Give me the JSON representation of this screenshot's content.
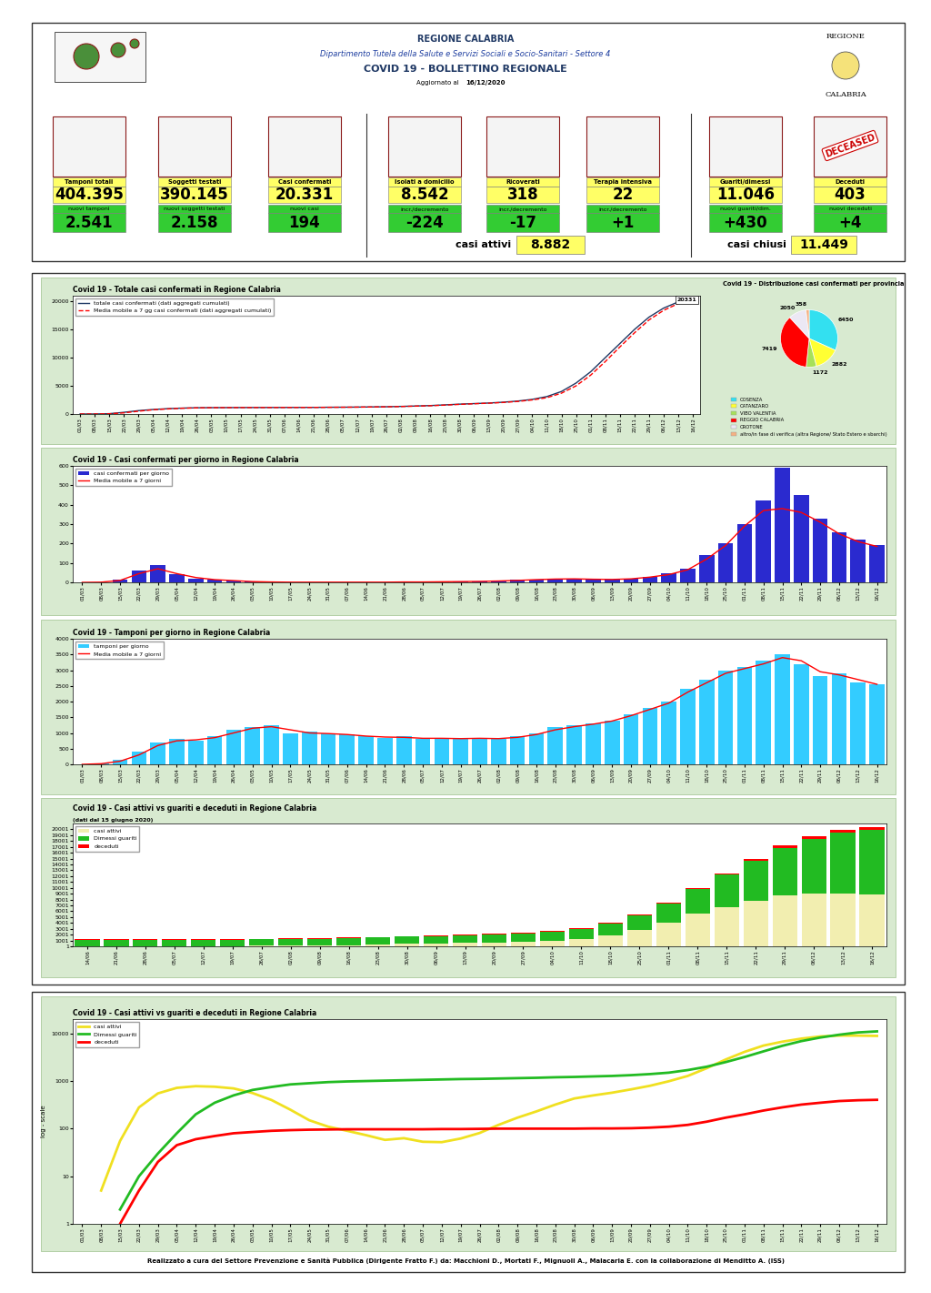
{
  "header": {
    "title": "REGIONE CALABRIA",
    "department": "Dipartimento Tutela della Salute e Servizi Sociali e Socio-Sanitari - Settore 4",
    "bulletin": "COVID 19 - BOLLETTINO REGIONALE",
    "updated_label": "Aggiornato al",
    "updated_date": "16/12/2020",
    "logo": [
      "REGIONE",
      "CALABRIA"
    ]
  },
  "indicators": [
    {
      "label": "Tamponi totali",
      "value": "404.395",
      "sub_label": "nuovi tamponi",
      "sub_value": "2.541"
    },
    {
      "label": "Soggetti testati",
      "value": "390.145",
      "sub_label": "nuovi soggetti testati",
      "sub_value": "2.158"
    },
    {
      "label": "Casi confermati",
      "value": "20.331",
      "sub_label": "nuovi casi",
      "sub_value": "194"
    },
    {
      "label": "Isolati a domicilio",
      "value": "8.542",
      "sub_label": "incr./decremento",
      "sub_value": "-224"
    },
    {
      "label": "Ricoverati",
      "value": "318",
      "sub_label": "incr./decremento",
      "sub_value": "-17"
    },
    {
      "label": "Terapia intensiva",
      "value": "22",
      "sub_label": "incr./decremento",
      "sub_value": "+1"
    },
    {
      "label": "Guariti/dimessi",
      "value": "11.046",
      "sub_label": "nuovi guariti/dim.",
      "sub_value": "+430"
    },
    {
      "label": "Deceduti",
      "value": "403",
      "sub_label": "nuovi deceduti",
      "sub_value": "+4"
    }
  ],
  "stamp": "DECEASED",
  "summary": [
    {
      "label": "casi attivi",
      "value": "8.882"
    },
    {
      "label": "casi chiusi",
      "value": "11.449"
    }
  ],
  "chart_data": [
    {
      "type": "line",
      "title": "Covid 19 - Totale casi confermati in Regione Calabria",
      "annotation": "20331",
      "categories": [
        "01/03",
        "08/03",
        "15/03",
        "22/03",
        "29/03",
        "05/04",
        "12/04",
        "19/04",
        "26/04",
        "03/05",
        "10/05",
        "17/05",
        "24/05",
        "31/05",
        "07/06",
        "14/06",
        "21/06",
        "28/06",
        "05/07",
        "12/07",
        "19/07",
        "26/07",
        "02/08",
        "09/08",
        "16/08",
        "23/08",
        "30/08",
        "06/09",
        "13/09",
        "20/09",
        "27/09",
        "04/10",
        "11/10",
        "18/10",
        "25/10",
        "01/11",
        "08/11",
        "15/11",
        "22/11",
        "29/11",
        "06/12",
        "13/12",
        "16/12"
      ],
      "series": [
        {
          "name": "totale casi confermati (dati aggregati cumulati)",
          "color": "#1f3864",
          "line_style": "solid",
          "values": [
            0,
            5,
            60,
            300,
            600,
            800,
            950,
            1050,
            1110,
            1130,
            1140,
            1150,
            1155,
            1160,
            1165,
            1170,
            1175,
            1200,
            1210,
            1230,
            1260,
            1290,
            1350,
            1420,
            1500,
            1620,
            1750,
            1850,
            1950,
            2100,
            2300,
            2600,
            3100,
            4000,
            5500,
            7500,
            10000,
            12500,
            15000,
            17200,
            18800,
            19900,
            20331
          ]
        },
        {
          "name": "Media mobile a 7 gg casi confermati (dati aggregati cumulati)",
          "color": "#ff0000",
          "line_style": "dashed",
          "values": [
            0,
            2,
            40,
            200,
            500,
            750,
            900,
            1020,
            1090,
            1125,
            1138,
            1148,
            1153,
            1158,
            1163,
            1168,
            1173,
            1190,
            1205,
            1222,
            1250,
            1280,
            1330,
            1400,
            1470,
            1580,
            1710,
            1820,
            1920,
            2050,
            2230,
            2500,
            2900,
            3700,
            5000,
            6900,
            9300,
            11900,
            14400,
            16700,
            18400,
            19600,
            20100
          ]
        }
      ],
      "ylim": [
        0,
        21000
      ],
      "yticks": [
        0,
        5000,
        10000,
        15000,
        20000
      ],
      "legend": "upper left"
    },
    {
      "type": "pie",
      "title": "Covid 19 - Distribuzione casi confermati per provincia",
      "categories": [
        "COSENZA",
        "CATANZARO",
        "VIBO VALENTIA",
        "REGGIO CALABRIA",
        "CROTONE",
        "altro/in fase di verifica (altra Regione/ Stato Estero e sbarchi)"
      ],
      "values": [
        6450,
        2882,
        1172,
        7419,
        2050,
        358
      ],
      "colors": [
        "#33e0f0",
        "#ffff33",
        "#a6e05a",
        "#ff0000",
        "#ece8f4",
        "#f4b183"
      ],
      "data_labels": true,
      "legend": "lower center"
    },
    {
      "type": "bar",
      "title": "Covid 19 - Casi confermati per giorno in Regione Calabria",
      "categories": [
        "01/03",
        "08/03",
        "15/03",
        "22/03",
        "29/03",
        "05/04",
        "12/04",
        "19/04",
        "26/04",
        "03/05",
        "10/05",
        "17/05",
        "24/05",
        "31/05",
        "07/06",
        "14/06",
        "21/06",
        "28/06",
        "05/07",
        "12/07",
        "19/07",
        "26/07",
        "02/08",
        "09/08",
        "16/08",
        "23/08",
        "30/08",
        "06/09",
        "13/09",
        "20/09",
        "27/09",
        "04/10",
        "11/10",
        "18/10",
        "25/10",
        "01/11",
        "08/11",
        "15/11",
        "22/11",
        "29/11",
        "06/12",
        "13/12",
        "16/12"
      ],
      "series": [
        {
          "name": "casi confermati per giorno",
          "type": "bar",
          "color": "#2a2acf",
          "values": [
            0,
            2,
            15,
            60,
            90,
            40,
            20,
            12,
            8,
            3,
            2,
            1,
            1,
            1,
            1,
            1,
            1,
            3,
            2,
            3,
            5,
            5,
            8,
            12,
            15,
            18,
            20,
            15,
            15,
            20,
            30,
            45,
            70,
            140,
            200,
            300,
            420,
            590,
            450,
            330,
            260,
            220,
            194
          ]
        },
        {
          "name": "Media mobile a 7 giorni",
          "type": "line",
          "color": "#ff0000",
          "values": [
            0,
            1,
            10,
            45,
            70,
            45,
            25,
            14,
            9,
            4,
            2,
            1,
            1,
            1,
            1,
            1,
            1,
            2,
            2,
            3,
            4,
            5,
            7,
            10,
            14,
            17,
            18,
            16,
            15,
            18,
            27,
            40,
            65,
            120,
            190,
            290,
            370,
            380,
            360,
            310,
            250,
            210,
            185
          ]
        }
      ],
      "ylim": [
        0,
        600
      ],
      "yticks": [
        0,
        100,
        200,
        300,
        400,
        500,
        600
      ],
      "legend": "upper left"
    },
    {
      "type": "bar",
      "title": "Covid 19 - Tamponi per giorno in Regione Calabria",
      "categories": [
        "01/03",
        "08/03",
        "15/03",
        "22/03",
        "29/03",
        "05/04",
        "12/04",
        "19/04",
        "26/04",
        "03/05",
        "10/05",
        "17/05",
        "24/05",
        "31/05",
        "07/06",
        "14/06",
        "21/06",
        "28/06",
        "05/07",
        "12/07",
        "19/07",
        "26/07",
        "02/08",
        "09/08",
        "16/08",
        "23/08",
        "30/08",
        "06/09",
        "13/09",
        "20/09",
        "27/09",
        "04/10",
        "11/10",
        "18/10",
        "25/10",
        "01/11",
        "08/11",
        "15/11",
        "22/11",
        "29/11",
        "06/12",
        "13/12",
        "16/12"
      ],
      "series": [
        {
          "name": "tamponi per giorno",
          "type": "bar",
          "color": "#33ccff",
          "values": [
            0,
            30,
            150,
            400,
            700,
            800,
            750,
            900,
            1100,
            1200,
            1250,
            1000,
            1050,
            1000,
            950,
            900,
            850,
            900,
            800,
            850,
            800,
            850,
            800,
            900,
            1000,
            1200,
            1250,
            1300,
            1400,
            1600,
            1800,
            2000,
            2400,
            2700,
            3000,
            3100,
            3300,
            3500,
            3200,
            2800,
            2900,
            2600,
            2541
          ]
        },
        {
          "name": "Media mobile a 7 giorni",
          "type": "line",
          "color": "#ff0000",
          "values": [
            0,
            20,
            100,
            300,
            600,
            750,
            780,
            850,
            1000,
            1150,
            1200,
            1100,
            1000,
            980,
            950,
            900,
            870,
            860,
            830,
            830,
            820,
            830,
            820,
            860,
            950,
            1100,
            1200,
            1280,
            1380,
            1550,
            1750,
            1950,
            2300,
            2600,
            2900,
            3050,
            3200,
            3400,
            3300,
            2950,
            2850,
            2700,
            2550
          ]
        }
      ],
      "ylim": [
        0,
        4000
      ],
      "yticks": [
        0,
        500,
        1000,
        1500,
        2000,
        2500,
        3000,
        3500,
        4000
      ],
      "legend": "upper left"
    },
    {
      "type": "bar",
      "stacked": true,
      "title": "Covid 19 - Casi attivi vs guariti e deceduti in Regione Calabria",
      "subtitle": "(dati dal 15 giugno 2020)",
      "categories": [
        "14/06",
        "21/06",
        "28/06",
        "05/07",
        "12/07",
        "19/07",
        "26/07",
        "02/08",
        "09/08",
        "16/08",
        "23/08",
        "30/08",
        "06/09",
        "13/09",
        "20/09",
        "27/09",
        "04/10",
        "11/10",
        "18/10",
        "25/10",
        "01/11",
        "08/11",
        "15/11",
        "22/11",
        "29/11",
        "06/12",
        "13/12",
        "16/12"
      ],
      "series": [
        {
          "name": "casi attivi",
          "color": "#f2eeb0",
          "values": [
            73,
            58,
            63,
            53,
            52,
            62,
            81,
            120,
            170,
            230,
            320,
            430,
            499,
            569,
            668,
            795,
            990,
            1280,
            1860,
            2830,
            4100,
            5560,
            6720,
            7780,
            8650,
            9020,
            9005,
            8882
          ]
        },
        {
          "name": "Dimessi guariti",
          "color": "#22bb22",
          "values": [
            1000,
            1020,
            1040,
            1060,
            1080,
            1100,
            1110,
            1130,
            1150,
            1170,
            1200,
            1220,
            1250,
            1280,
            1330,
            1400,
            1500,
            1700,
            2000,
            2500,
            3200,
            4200,
            5500,
            6900,
            8200,
            9400,
            10500,
            11046
          ]
        },
        {
          "name": "deceduti",
          "color": "#ff0000",
          "values": [
            97,
            97,
            97,
            97,
            98,
            98,
            99,
            100,
            100,
            100,
            100,
            100,
            101,
            101,
            102,
            105,
            110,
            120,
            140,
            170,
            200,
            240,
            280,
            320,
            350,
            380,
            395,
            403
          ]
        }
      ],
      "ylim": [
        0,
        21000
      ],
      "yticks": [
        1,
        1001,
        2001,
        3001,
        4001,
        5001,
        6001,
        7001,
        8001,
        9001,
        10001,
        11001,
        12001,
        13001,
        14001,
        15001,
        16001,
        17001,
        18001,
        19001,
        20001
      ],
      "legend": "upper left"
    },
    {
      "type": "line",
      "log": "y",
      "title": "Covid 19 - Casi attivi vs guariti e deceduti in Regione Calabria",
      "y_label": "log - scale",
      "categories": [
        "01/03",
        "08/03",
        "15/03",
        "22/03",
        "29/03",
        "05/04",
        "12/04",
        "19/04",
        "26/04",
        "03/05",
        "10/05",
        "17/05",
        "24/05",
        "31/05",
        "07/06",
        "14/06",
        "21/06",
        "28/06",
        "05/07",
        "12/07",
        "19/07",
        "26/07",
        "02/08",
        "09/08",
        "16/08",
        "23/08",
        "30/08",
        "06/09",
        "13/09",
        "20/09",
        "27/09",
        "04/10",
        "11/10",
        "18/10",
        "25/10",
        "01/11",
        "08/11",
        "15/11",
        "22/11",
        "29/11",
        "06/12",
        "13/12",
        "16/12"
      ],
      "series": [
        {
          "name": "casi attivi",
          "color": "#f0e020",
          "values": [
            null,
            5,
            55,
            280,
            550,
            720,
            780,
            760,
            700,
            560,
            400,
            250,
            150,
            110,
            90,
            73,
            58,
            63,
            53,
            52,
            62,
            81,
            120,
            170,
            230,
            320,
            430,
            499,
            569,
            668,
            795,
            990,
            1280,
            1860,
            2830,
            4100,
            5560,
            6720,
            7780,
            8650,
            9020,
            9005,
            8882
          ]
        },
        {
          "name": "Dimessi guariti",
          "color": "#22bb22",
          "values": [
            null,
            null,
            2,
            10,
            30,
            80,
            200,
            350,
            500,
            650,
            750,
            850,
            900,
            950,
            980,
            1000,
            1020,
            1040,
            1060,
            1080,
            1100,
            1110,
            1130,
            1150,
            1170,
            1200,
            1220,
            1250,
            1280,
            1330,
            1400,
            1500,
            1700,
            2000,
            2500,
            3200,
            4200,
            5500,
            6900,
            8200,
            9400,
            10500,
            11046
          ]
        },
        {
          "name": "deceduti",
          "color": "#ff0000",
          "values": [
            null,
            null,
            1,
            5,
            20,
            45,
            60,
            70,
            80,
            85,
            90,
            93,
            95,
            96,
            97,
            97,
            97,
            97,
            97,
            98,
            98,
            99,
            100,
            100,
            100,
            100,
            100,
            101,
            101,
            102,
            105,
            110,
            120,
            140,
            170,
            200,
            240,
            280,
            320,
            350,
            380,
            395,
            403
          ]
        }
      ],
      "ylim": [
        1,
        20000
      ],
      "yticks": [
        1,
        10,
        100,
        1000,
        10000
      ],
      "legend": "upper left"
    }
  ],
  "footer": "Realizzato a cura del Settore Prevenzione e Sanità Pubblica (Dirigente Fratto F.) da: Macchioni D., Mortati F., Mignuoli A., Malacaria E. con la collaborazione di Menditto A. (ISS)"
}
